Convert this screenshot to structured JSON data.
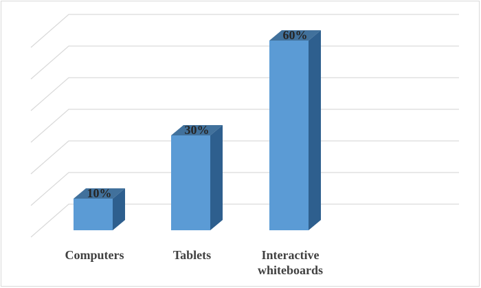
{
  "chart_data": {
    "type": "bar",
    "style": "3d-column",
    "title": "",
    "xlabel": "",
    "ylabel": "",
    "categories": [
      "Computers",
      "Tablets",
      "Interactive whiteboards"
    ],
    "category_lines": [
      [
        "Computers"
      ],
      [
        "Tablets"
      ],
      [
        "Interactive",
        "whiteboards"
      ]
    ],
    "values": [
      10,
      30,
      60
    ],
    "data_labels": [
      "10%",
      "30%",
      "60%"
    ],
    "ylim": [
      0,
      60
    ],
    "gridlines": true,
    "legend": "none",
    "colors": {
      "bar_front": "#5b9bd5",
      "bar_side": "#2e5f8e",
      "bar_top": "#41719c",
      "grid": "#d9d9d9",
      "tick_text": "#404040",
      "label_text": "#262626"
    }
  }
}
